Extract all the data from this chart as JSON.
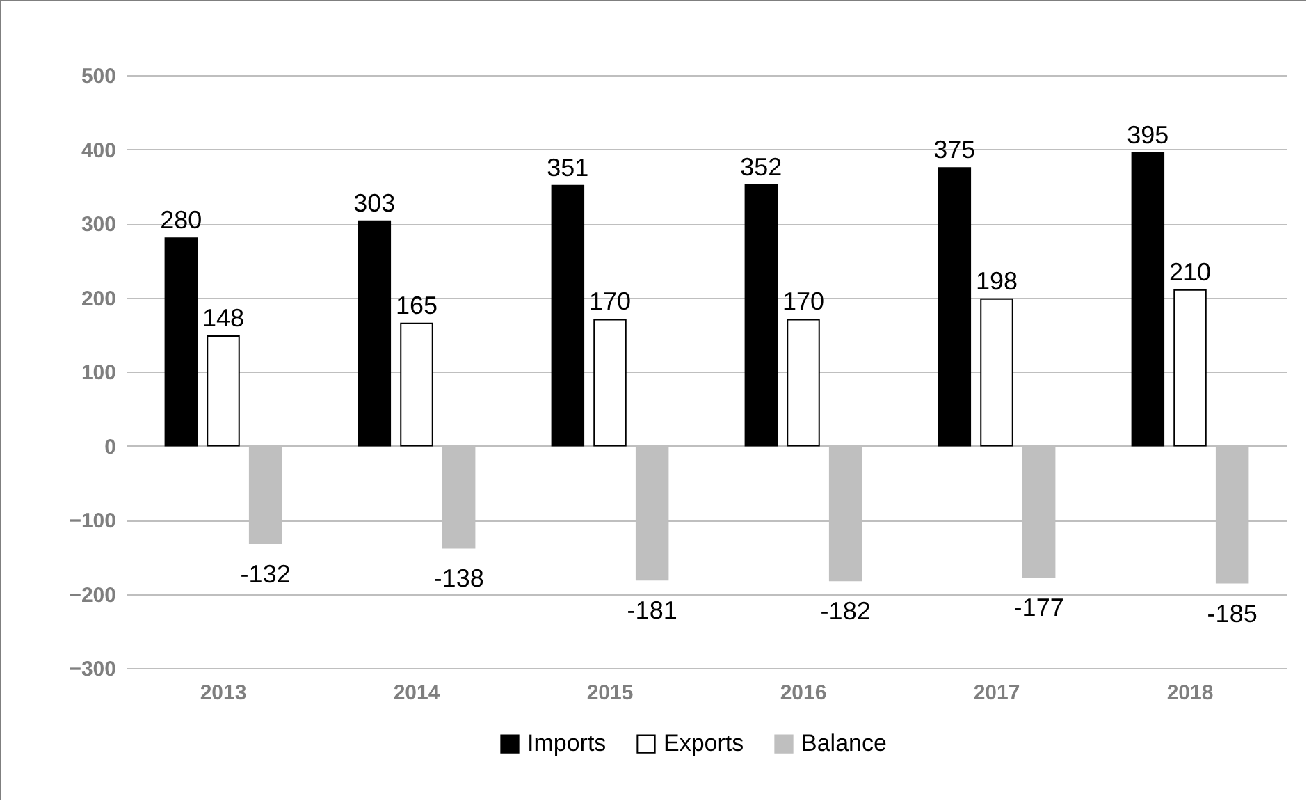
{
  "chart_data": {
    "type": "bar",
    "categories": [
      "2013",
      "2014",
      "2015",
      "2016",
      "2017",
      "2018"
    ],
    "series": [
      {
        "name": "Imports",
        "color": "#000000",
        "values": [
          280,
          303,
          351,
          352,
          375,
          395
        ]
      },
      {
        "name": "Exports",
        "color": "#ffffff",
        "values": [
          148,
          165,
          170,
          170,
          198,
          210
        ]
      },
      {
        "name": "Balance",
        "color": "#bfbfbf",
        "values": [
          -132,
          -138,
          -181,
          -182,
          -177,
          -185
        ]
      }
    ],
    "ylim": [
      -300,
      500
    ],
    "yticks": [
      -300,
      -200,
      -100,
      0,
      100,
      200,
      300,
      400,
      500
    ],
    "grid": "y",
    "legend": "bottom",
    "data_labels": true
  }
}
